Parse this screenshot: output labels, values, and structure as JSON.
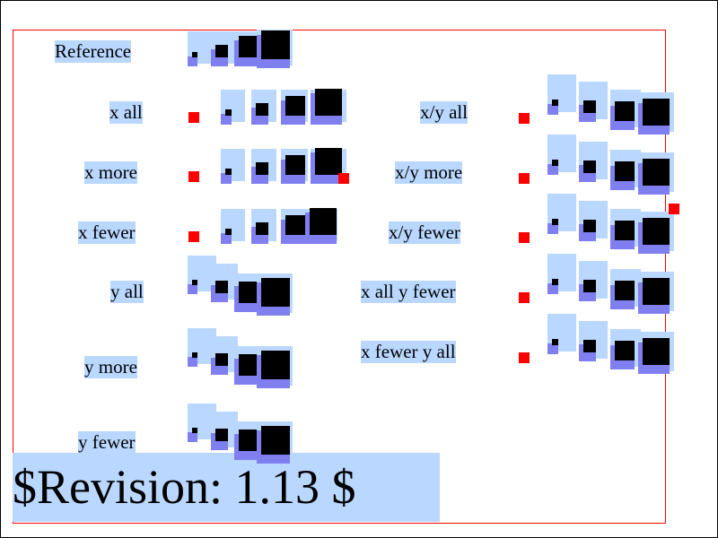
{
  "labels": {
    "reference": "Reference",
    "x_all": "x all",
    "x_more": "x more",
    "x_fewer": "x fewer",
    "y_all": "y all",
    "y_more": "y more",
    "y_fewer": "y fewer",
    "xy_all": "x/y all",
    "xy_more": "x/y more",
    "xy_fewer": "x/y fewer",
    "x_all_y_fewer": "x all y fewer",
    "x_fewer_y_all": "x fewer y all"
  },
  "footer": {
    "revision": "$Revision: 1.13 $"
  },
  "colors": {
    "highlight": "#b9d7ff",
    "shadow": "#7f7ff0",
    "marker": "#ff0000",
    "frame": "#000000",
    "inner_frame": "#ff0000"
  }
}
